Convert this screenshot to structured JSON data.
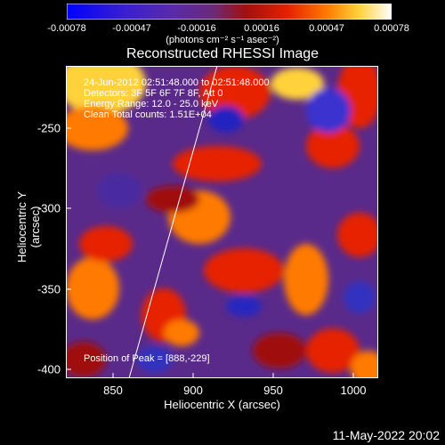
{
  "colorbar": {
    "ticks": [
      "-0.00078",
      "-0.00047",
      "-0.00016",
      "0.00016",
      "0.00047",
      "0.00078"
    ],
    "units": "(photons cm⁻² s⁻¹ asec⁻²)"
  },
  "title": "Reconstructed RHESSI Image",
  "annotations": {
    "line1": "24-Jun-2012 02:51:48.000 to 02:51:48.000",
    "line2": "Detectors: 3F 5F 6F 7F 8F, Att 0",
    "line3": "Energy Range: 12.0 - 25.0 keV",
    "line4": "Clean    Total counts: 1.51E+04",
    "peak": "Position of Peak = [888,-229]"
  },
  "axes": {
    "xlabel": "Heliocentric X (arcsec)",
    "ylabel": "Heliocentric Y (arcsec)",
    "xticks": [
      "850",
      "900",
      "950",
      "1000"
    ],
    "yticks": [
      "-250",
      "-300",
      "-350",
      "-400"
    ]
  },
  "footer": "11-May-2022 20:02",
  "colors": {
    "background": "#000000",
    "text": "#ffffff"
  }
}
